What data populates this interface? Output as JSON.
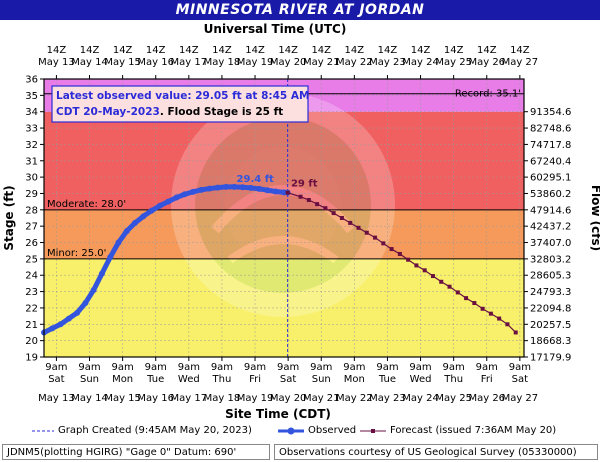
{
  "title": "MINNESOTA RIVER AT JORDAN",
  "colors": {
    "title_bg": "#1a1aa8",
    "record_band": "#e87de8",
    "major_band": "#f06060",
    "moderate_band": "#f59a5a",
    "minor_band": "#f8f06a",
    "observed": "#3355dd",
    "forecast": "#6a1040",
    "annotation_text": "#2b2bd8"
  },
  "legend": {
    "graph_created": "Graph Created (9:45AM May 20, 2023)",
    "observed": "Observed",
    "forecast": "Forecast (issued 7:36AM May 20)"
  },
  "footer": {
    "left": "JDNM5(plotting HGIRG) \"Gage 0\" Datum: 690'",
    "right": "Observations courtesy of US Geological Survey (05330000)"
  },
  "chart_data": {
    "type": "line",
    "title": "MINNESOTA RIVER AT JORDAN",
    "top_axis_title": "Universal Time (UTC)",
    "xlabel": "Site Time (CDT)",
    "ylabel": "Stage (ft)",
    "ylabel_right": "Flow (cfs)",
    "ylim": [
      19,
      36
    ],
    "y_ticks": [
      19,
      20,
      21,
      22,
      23,
      24,
      25,
      26,
      27,
      28,
      29,
      30,
      31,
      32,
      33,
      34,
      35,
      36
    ],
    "x_range_days": [
      "May 13 00:00",
      "May 27 12:00"
    ],
    "x_ticks_local": [
      {
        "time": "9am",
        "day": "Sat",
        "date": "May 13"
      },
      {
        "time": "9am",
        "day": "Sun",
        "date": "May 14"
      },
      {
        "time": "9am",
        "day": "Mon",
        "date": "May 15"
      },
      {
        "time": "9am",
        "day": "Tue",
        "date": "May 16"
      },
      {
        "time": "9am",
        "day": "Wed",
        "date": "May 17"
      },
      {
        "time": "9am",
        "day": "Thu",
        "date": "May 18"
      },
      {
        "time": "9am",
        "day": "Fri",
        "date": "May 19"
      },
      {
        "time": "9am",
        "day": "Sat",
        "date": "May 20"
      },
      {
        "time": "9am",
        "day": "Sun",
        "date": "May 21"
      },
      {
        "time": "9am",
        "day": "Mon",
        "date": "May 22"
      },
      {
        "time": "9am",
        "day": "Tue",
        "date": "May 23"
      },
      {
        "time": "9am",
        "day": "Wed",
        "date": "May 24"
      },
      {
        "time": "9am",
        "day": "Thu",
        "date": "May 25"
      },
      {
        "time": "9am",
        "day": "Fri",
        "date": "May 26"
      },
      {
        "time": "9am",
        "day": "Sat",
        "date": "May 27"
      }
    ],
    "x_ticks_utc": [
      {
        "time": "14Z",
        "date": "May 13"
      },
      {
        "time": "14Z",
        "date": "May 14"
      },
      {
        "time": "14Z",
        "date": "May 15"
      },
      {
        "time": "14Z",
        "date": "May 16"
      },
      {
        "time": "14Z",
        "date": "May 17"
      },
      {
        "time": "14Z",
        "date": "May 18"
      },
      {
        "time": "14Z",
        "date": "May 19"
      },
      {
        "time": "14Z",
        "date": "May 20"
      },
      {
        "time": "14Z",
        "date": "May 21"
      },
      {
        "time": "14Z",
        "date": "May 22"
      },
      {
        "time": "14Z",
        "date": "May 23"
      },
      {
        "time": "14Z",
        "date": "May 24"
      },
      {
        "time": "14Z",
        "date": "May 25"
      },
      {
        "time": "14Z",
        "date": "May 26"
      },
      {
        "time": "14Z",
        "date": "May 27"
      }
    ],
    "flow_ticks": [
      {
        "stage": 19,
        "label": "17179.9"
      },
      {
        "stage": 20,
        "label": "18668.3"
      },
      {
        "stage": 21,
        "label": "20257.5"
      },
      {
        "stage": 22,
        "label": "22094.8"
      },
      {
        "stage": 23,
        "label": "24793.3"
      },
      {
        "stage": 24,
        "label": "28605.3"
      },
      {
        "stage": 25,
        "label": "32803.2"
      },
      {
        "stage": 26,
        "label": "37407.0"
      },
      {
        "stage": 27,
        "label": "42437.2"
      },
      {
        "stage": 28,
        "label": "47914.6"
      },
      {
        "stage": 29,
        "label": "53860.2"
      },
      {
        "stage": 30,
        "label": "60295.1"
      },
      {
        "stage": 31,
        "label": "67240.4"
      },
      {
        "stage": 32,
        "label": "74717.8"
      },
      {
        "stage": 33,
        "label": "82748.6"
      },
      {
        "stage": 34,
        "label": "91354.6"
      }
    ],
    "bands": [
      {
        "from": 19,
        "to": 25,
        "color": "#f8f06a"
      },
      {
        "from": 25,
        "to": 28,
        "color": "#f59a5a"
      },
      {
        "from": 28,
        "to": 34,
        "color": "#f06060"
      },
      {
        "from": 34,
        "to": 36,
        "color": "#e87de8"
      }
    ],
    "thresholds": [
      {
        "name": "Minor",
        "label": "Minor: 25.0'",
        "value": 25.0
      },
      {
        "name": "Moderate",
        "label": "Moderate: 28.0'",
        "value": 28.0
      },
      {
        "name": "Record",
        "label": "Record: 35.1'",
        "value": 35.1
      }
    ],
    "annotation_box": {
      "line1": "Latest observed value: 29.05 ft at 8:45 AM",
      "line2a": "CDT 20-May-2023",
      "line2b": ". Flood Stage is 25 ft"
    },
    "crest_label": {
      "text": "29.4 ft",
      "x_day": 6.38,
      "y": 29.4
    },
    "forecast_label": {
      "text": "29 ft",
      "x_day": 7.4,
      "y": 29.0
    },
    "graph_created_x_day": 7.36,
    "observed": {
      "x_day": [
        0.0,
        0.25,
        0.5,
        0.75,
        1.0,
        1.25,
        1.5,
        1.75,
        2.0,
        2.25,
        2.5,
        2.75,
        3.0,
        3.25,
        3.5,
        3.75,
        4.0,
        4.25,
        4.5,
        4.75,
        5.0,
        5.25,
        5.5,
        5.75,
        6.0,
        6.25,
        6.5,
        6.75,
        7.0,
        7.25,
        7.36
      ],
      "y": [
        20.5,
        20.75,
        21.0,
        21.35,
        21.7,
        22.3,
        23.1,
        24.1,
        25.1,
        26.0,
        26.7,
        27.2,
        27.6,
        27.95,
        28.25,
        28.5,
        28.75,
        28.95,
        29.1,
        29.22,
        29.3,
        29.36,
        29.4,
        29.4,
        29.38,
        29.34,
        29.28,
        29.2,
        29.12,
        29.07,
        29.05
      ]
    },
    "forecast": {
      "x_day": [
        7.36,
        7.75,
        8.0,
        8.25,
        8.5,
        8.75,
        9.0,
        9.25,
        9.5,
        9.75,
        10.0,
        10.25,
        10.5,
        10.75,
        11.0,
        11.25,
        11.5,
        11.75,
        12.0,
        12.25,
        12.5,
        12.75,
        13.0,
        13.25,
        13.5,
        13.75,
        14.0,
        14.25
      ],
      "y": [
        29.05,
        28.8,
        28.6,
        28.35,
        28.1,
        27.8,
        27.5,
        27.2,
        26.9,
        26.6,
        26.3,
        25.95,
        25.6,
        25.3,
        24.95,
        24.6,
        24.3,
        23.95,
        23.6,
        23.3,
        22.95,
        22.6,
        22.3,
        21.95,
        21.65,
        21.35,
        21.0,
        20.5
      ]
    }
  }
}
